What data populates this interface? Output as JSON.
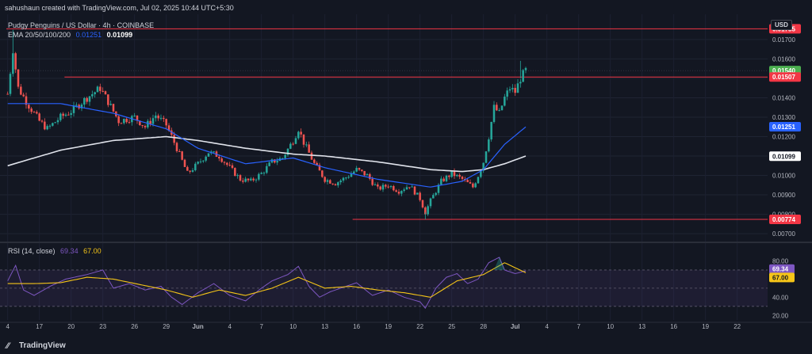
{
  "header": {
    "creator": "sahushaun created with TradingView.com, Jul 02, 2025 10:44 UTC+5:30",
    "symbol": "Pudgy Penguins / US Dollar · 4h · COINBASE",
    "ema_label": "EMA 20/50/100/200",
    "ema_value1": "0.01251",
    "ema_value2": "0.01099",
    "currency": "USD"
  },
  "rsi_header": {
    "label": "RSI (14, close)",
    "value1": "69.34",
    "value2": "67.00"
  },
  "footer": {
    "brand": "TradingView"
  },
  "colors": {
    "background": "#131722",
    "up": "#26a69a",
    "down": "#ef5350",
    "ema_fast": "#2962ff",
    "ema_slow": "#e0e3eb",
    "rsi": "#7e57c2",
    "rsi_ma": "#f5c518",
    "level_line": "#f23645"
  },
  "chart_data": {
    "type": "candlestick",
    "y_axis": {
      "range": [
        0.0068,
        0.0183
      ],
      "ticks": [
        "0.01700",
        "0.01600",
        "0.01500",
        "0.01400",
        "0.01300",
        "0.01200",
        "0.01100",
        "0.01000",
        "0.00900",
        "0.00800",
        "0.00700"
      ],
      "tick_values": [
        0.017,
        0.016,
        0.015,
        0.014,
        0.013,
        0.012,
        0.011,
        0.01,
        0.009,
        0.008,
        0.007
      ]
    },
    "x_axis": {
      "ticks": [
        "4",
        "17",
        "20",
        "23",
        "26",
        "29",
        "Jun",
        "4",
        "7",
        "10",
        "13",
        "16",
        "19",
        "22",
        "25",
        "28",
        "Jul",
        "4",
        "7",
        "10",
        "13",
        "16",
        "19",
        "22"
      ],
      "tick_index": [
        0,
        12,
        24,
        36,
        48,
        60,
        72,
        84,
        96,
        108,
        120,
        132,
        144,
        156,
        168,
        180,
        192,
        204,
        216,
        228,
        240,
        252,
        264,
        276
      ]
    },
    "price_labels": [
      {
        "value": 0.01755,
        "text": "0.01755",
        "color": "#f23645"
      },
      {
        "value": 0.0154,
        "text": "0.01540",
        "color": "#4caf50"
      },
      {
        "value": 0.01507,
        "text": "0.01507",
        "color": "#f23645"
      },
      {
        "value": 0.01251,
        "text": "0.01251",
        "color": "#2962ff"
      },
      {
        "value": 0.01099,
        "text": "0.01099",
        "color": "#ffffff"
      },
      {
        "value": 0.00774,
        "text": "0.00774",
        "color": "#f23645"
      }
    ],
    "horizontal_levels": [
      {
        "value": 0.01755,
        "from_index": 0
      },
      {
        "value": 0.01507,
        "from_index": 22
      },
      {
        "value": 0.00774,
        "from_index": 131
      }
    ],
    "price_anchors": [
      [
        0,
        0.0142
      ],
      [
        2,
        0.0165
      ],
      [
        4,
        0.0145
      ],
      [
        8,
        0.0136
      ],
      [
        12,
        0.0128
      ],
      [
        15,
        0.0124
      ],
      [
        20,
        0.013
      ],
      [
        24,
        0.0133
      ],
      [
        30,
        0.014
      ],
      [
        35,
        0.0145
      ],
      [
        38,
        0.0138
      ],
      [
        42,
        0.0128
      ],
      [
        48,
        0.013
      ],
      [
        52,
        0.0125
      ],
      [
        56,
        0.0131
      ],
      [
        60,
        0.0126
      ],
      [
        64,
        0.0114
      ],
      [
        68,
        0.0101
      ],
      [
        72,
        0.0106
      ],
      [
        76,
        0.0112
      ],
      [
        80,
        0.011
      ],
      [
        84,
        0.0104
      ],
      [
        88,
        0.0098
      ],
      [
        92,
        0.0097
      ],
      [
        96,
        0.0101
      ],
      [
        100,
        0.0107
      ],
      [
        104,
        0.0109
      ],
      [
        108,
        0.0118
      ],
      [
        110,
        0.0124
      ],
      [
        112,
        0.0117
      ],
      [
        116,
        0.0106
      ],
      [
        120,
        0.0098
      ],
      [
        124,
        0.0096
      ],
      [
        128,
        0.0099
      ],
      [
        132,
        0.0103
      ],
      [
        136,
        0.01
      ],
      [
        140,
        0.0093
      ],
      [
        144,
        0.0095
      ],
      [
        148,
        0.0092
      ],
      [
        152,
        0.0095
      ],
      [
        156,
        0.0088
      ],
      [
        158,
        0.0081
      ],
      [
        160,
        0.0087
      ],
      [
        164,
        0.0097
      ],
      [
        168,
        0.0101
      ],
      [
        172,
        0.0098
      ],
      [
        176,
        0.0094
      ],
      [
        178,
        0.01
      ],
      [
        180,
        0.0107
      ],
      [
        182,
        0.012
      ],
      [
        184,
        0.0135
      ],
      [
        186,
        0.0132
      ],
      [
        188,
        0.014
      ],
      [
        190,
        0.0145
      ],
      [
        192,
        0.0143
      ],
      [
        194,
        0.015
      ],
      [
        196,
        0.0154
      ]
    ],
    "ema_fast_anchors": [
      [
        0,
        0.0137
      ],
      [
        20,
        0.0137
      ],
      [
        40,
        0.0132
      ],
      [
        60,
        0.0124
      ],
      [
        72,
        0.0114
      ],
      [
        90,
        0.0106
      ],
      [
        108,
        0.0109
      ],
      [
        120,
        0.0104
      ],
      [
        140,
        0.0098
      ],
      [
        160,
        0.0094
      ],
      [
        172,
        0.0097
      ],
      [
        180,
        0.0103
      ],
      [
        188,
        0.0116
      ],
      [
        196,
        0.0125
      ]
    ],
    "ema_slow_anchors": [
      [
        0,
        0.0105
      ],
      [
        20,
        0.0113
      ],
      [
        40,
        0.0118
      ],
      [
        60,
        0.012
      ],
      [
        72,
        0.0118
      ],
      [
        90,
        0.0114
      ],
      [
        108,
        0.0111
      ],
      [
        120,
        0.011
      ],
      [
        140,
        0.0107
      ],
      [
        160,
        0.0103
      ],
      [
        172,
        0.0102
      ],
      [
        180,
        0.0103
      ],
      [
        188,
        0.0106
      ],
      [
        196,
        0.011
      ]
    ],
    "rsi": {
      "range": [
        15,
        90
      ],
      "ticks": [
        "80.00",
        "60.00",
        "40.00",
        "20.00"
      ],
      "tick_values": [
        80,
        60,
        40,
        20
      ],
      "band": [
        30,
        70
      ],
      "labels": [
        {
          "value": 69.34,
          "text": "69.34",
          "color": "#7e57c2"
        },
        {
          "value": 67.0,
          "text": "67.00",
          "color": "#f5c518"
        }
      ],
      "rsi_anchors": [
        [
          0,
          58
        ],
        [
          3,
          75
        ],
        [
          6,
          48
        ],
        [
          10,
          42
        ],
        [
          16,
          52
        ],
        [
          22,
          60
        ],
        [
          30,
          65
        ],
        [
          36,
          70
        ],
        [
          40,
          50
        ],
        [
          46,
          55
        ],
        [
          52,
          48
        ],
        [
          58,
          52
        ],
        [
          62,
          40
        ],
        [
          66,
          32
        ],
        [
          72,
          45
        ],
        [
          78,
          55
        ],
        [
          84,
          42
        ],
        [
          90,
          36
        ],
        [
          96,
          50
        ],
        [
          100,
          58
        ],
        [
          106,
          65
        ],
        [
          110,
          74
        ],
        [
          114,
          52
        ],
        [
          118,
          40
        ],
        [
          122,
          46
        ],
        [
          128,
          52
        ],
        [
          132,
          56
        ],
        [
          138,
          42
        ],
        [
          144,
          48
        ],
        [
          150,
          40
        ],
        [
          156,
          35
        ],
        [
          158,
          28
        ],
        [
          162,
          50
        ],
        [
          166,
          62
        ],
        [
          170,
          66
        ],
        [
          174,
          55
        ],
        [
          178,
          60
        ],
        [
          182,
          78
        ],
        [
          186,
          84
        ],
        [
          188,
          70
        ],
        [
          192,
          66
        ],
        [
          196,
          69
        ]
      ],
      "ma_anchors": [
        [
          0,
          55
        ],
        [
          10,
          55
        ],
        [
          20,
          56
        ],
        [
          30,
          62
        ],
        [
          40,
          60
        ],
        [
          50,
          54
        ],
        [
          60,
          48
        ],
        [
          70,
          40
        ],
        [
          80,
          48
        ],
        [
          90,
          42
        ],
        [
          100,
          50
        ],
        [
          110,
          62
        ],
        [
          120,
          50
        ],
        [
          130,
          52
        ],
        [
          140,
          48
        ],
        [
          150,
          45
        ],
        [
          160,
          40
        ],
        [
          170,
          58
        ],
        [
          180,
          65
        ],
        [
          188,
          78
        ],
        [
          196,
          67
        ]
      ]
    }
  }
}
